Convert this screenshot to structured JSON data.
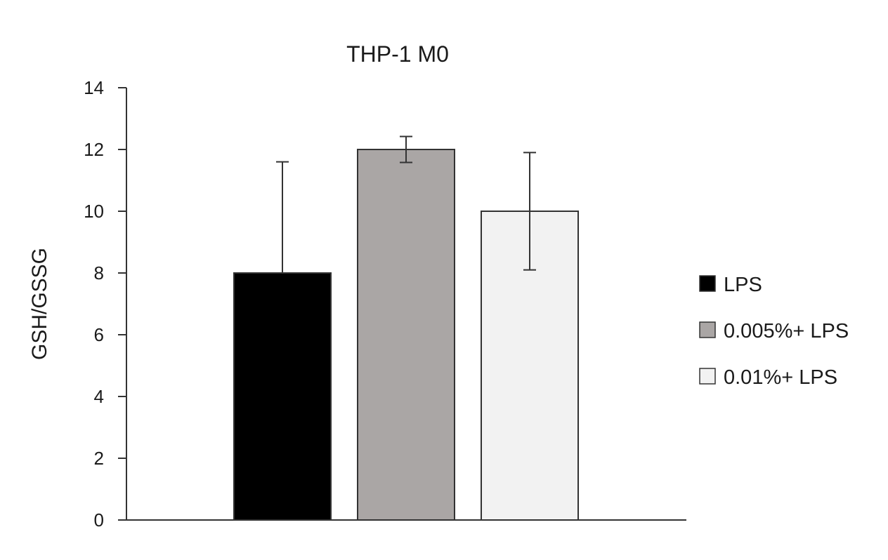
{
  "chart_data": {
    "type": "bar",
    "title": "THP-1 M0",
    "xlabel": "",
    "ylabel": "GSH/GSSG",
    "ylim": [
      0,
      14
    ],
    "yticks": [
      "0",
      "2",
      "4",
      "6",
      "8",
      "10",
      "12",
      "14"
    ],
    "grid": false,
    "legend_position": "right",
    "series": [
      {
        "name": "LPS",
        "value": 8.0,
        "error": 3.6,
        "error_lower_visible": false,
        "color": "#000000"
      },
      {
        "name": "0.005%+ LPS",
        "value": 12.0,
        "error": 0.42,
        "error_lower_visible": true,
        "color": "#aaa6a5"
      },
      {
        "name": "0.01%+ LPS",
        "value": 10.0,
        "error": 1.9,
        "error_lower_visible": true,
        "color": "#f2f2f2"
      }
    ]
  }
}
